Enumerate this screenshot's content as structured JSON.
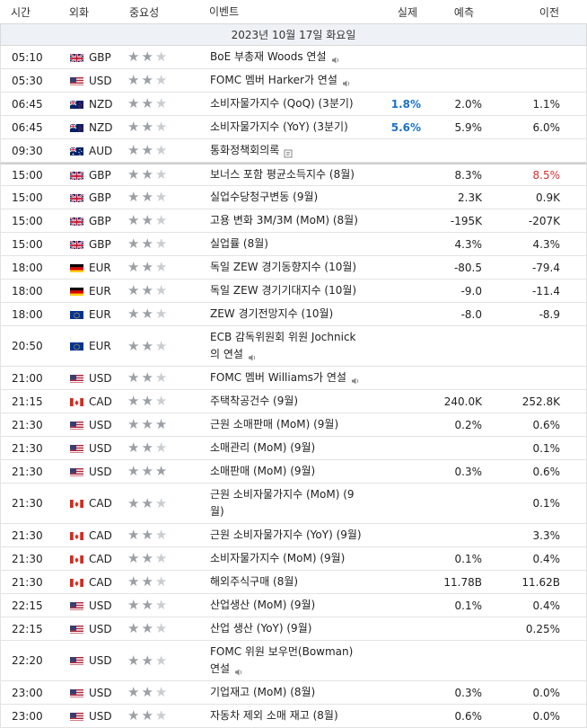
{
  "headers": {
    "time": "시간",
    "currency": "외화",
    "importance": "중요성",
    "event": "이벤트",
    "actual": "실제",
    "forecast": "예측",
    "previous": "이전"
  },
  "date_label": "2023년 10월 17일 화요일",
  "colors": {
    "actual_positive": "#1a73c9",
    "previous_revised": "#d62e2e",
    "star": "#9aa0a6"
  },
  "rows": [
    {
      "time": "05:10",
      "flag": "gb-flag-icon",
      "currency": "GBP",
      "stars": 2,
      "event": "BoE 부총재 Woods 연설",
      "icon": "sound",
      "actual": "",
      "forecast": "",
      "previous": "",
      "prevRed": false
    },
    {
      "time": "05:30",
      "flag": "us-flag-icon",
      "currency": "USD",
      "stars": 2,
      "event": "FOMC 멤버 Harker가 연설",
      "icon": "sound",
      "actual": "",
      "forecast": "",
      "previous": "",
      "prevRed": false
    },
    {
      "time": "06:45",
      "flag": "nz-flag-icon",
      "currency": "NZD",
      "stars": 2,
      "event": "소비자물가지수 (QoQ) (3분기)",
      "icon": "",
      "actual": "1.8%",
      "forecast": "2.0%",
      "previous": "1.1%",
      "prevRed": false
    },
    {
      "time": "06:45",
      "flag": "nz-flag-icon",
      "currency": "NZD",
      "stars": 2,
      "event": "소비자물가지수 (YoY) (3분기)",
      "icon": "",
      "actual": "5.6%",
      "forecast": "5.9%",
      "previous": "6.0%",
      "prevRed": false
    },
    {
      "time": "09:30",
      "flag": "au-flag-icon",
      "currency": "AUD",
      "stars": 2,
      "event": "통화정책회의록",
      "icon": "doc",
      "actual": "",
      "forecast": "",
      "previous": "",
      "prevRed": false
    },
    {
      "time": "15:00",
      "flag": "gb-flag-icon",
      "currency": "GBP",
      "stars": 2,
      "event": "보너스 포함 평균소득지수 (8월)",
      "icon": "",
      "actual": "",
      "forecast": "8.3%",
      "previous": "8.5%",
      "prevRed": true,
      "sep": true
    },
    {
      "time": "15:00",
      "flag": "gb-flag-icon",
      "currency": "GBP",
      "stars": 2,
      "event": "실업수당청구변동 (9월)",
      "icon": "",
      "actual": "",
      "forecast": "2.3K",
      "previous": "0.9K",
      "prevRed": false
    },
    {
      "time": "15:00",
      "flag": "gb-flag-icon",
      "currency": "GBP",
      "stars": 2,
      "event": "고용 변화 3M/3M (MoM) (8월)",
      "icon": "",
      "actual": "",
      "forecast": "-195K",
      "previous": "-207K",
      "prevRed": false
    },
    {
      "time": "15:00",
      "flag": "gb-flag-icon",
      "currency": "GBP",
      "stars": 2,
      "event": "실업률 (8월)",
      "icon": "",
      "actual": "",
      "forecast": "4.3%",
      "previous": "4.3%",
      "prevRed": false
    },
    {
      "time": "18:00",
      "flag": "de-flag-icon",
      "currency": "EUR",
      "stars": 2,
      "event": "독일 ZEW 경기동향지수 (10월)",
      "icon": "",
      "actual": "",
      "forecast": "-80.5",
      "previous": "-79.4",
      "prevRed": false
    },
    {
      "time": "18:00",
      "flag": "de-flag-icon",
      "currency": "EUR",
      "stars": 2,
      "event": "독일 ZEW 경기기대지수 (10월)",
      "icon": "",
      "actual": "",
      "forecast": "-9.0",
      "previous": "-11.4",
      "prevRed": false
    },
    {
      "time": "18:00",
      "flag": "eu-flag-icon",
      "currency": "EUR",
      "stars": 2,
      "event": "ZEW 경기전망지수 (10월)",
      "icon": "",
      "actual": "",
      "forecast": "-8.0",
      "previous": "-8.9",
      "prevRed": false
    },
    {
      "time": "20:50",
      "flag": "eu-flag-icon",
      "currency": "EUR",
      "stars": 2,
      "event": "ECB 감독위원회 위원 Jochnick 의 연설",
      "icon": "sound",
      "actual": "",
      "forecast": "",
      "previous": "",
      "prevRed": false,
      "tall": true
    },
    {
      "time": "21:00",
      "flag": "us-flag-icon",
      "currency": "USD",
      "stars": 2,
      "event": "FOMC 멤버 Williams가 연설",
      "icon": "sound",
      "actual": "",
      "forecast": "",
      "previous": "",
      "prevRed": false
    },
    {
      "time": "21:15",
      "flag": "ca-flag-icon",
      "currency": "CAD",
      "stars": 2,
      "event": "주택착공건수 (9월)",
      "icon": "",
      "actual": "",
      "forecast": "240.0K",
      "previous": "252.8K",
      "prevRed": false
    },
    {
      "time": "21:30",
      "flag": "us-flag-icon",
      "currency": "USD",
      "stars": 3,
      "event": "근원 소매판매 (MoM) (9월)",
      "icon": "",
      "actual": "",
      "forecast": "0.2%",
      "previous": "0.6%",
      "prevRed": false
    },
    {
      "time": "21:30",
      "flag": "us-flag-icon",
      "currency": "USD",
      "stars": 2,
      "event": "소매관리 (MoM) (9월)",
      "icon": "",
      "actual": "",
      "forecast": "",
      "previous": "0.1%",
      "prevRed": false
    },
    {
      "time": "21:30",
      "flag": "us-flag-icon",
      "currency": "USD",
      "stars": 3,
      "event": "소매판매 (MoM) (9월)",
      "icon": "",
      "actual": "",
      "forecast": "0.3%",
      "previous": "0.6%",
      "prevRed": false
    },
    {
      "time": "21:30",
      "flag": "ca-flag-icon",
      "currency": "CAD",
      "stars": 2,
      "event": "근원 소비자물가지수 (MoM) (9월)",
      "icon": "",
      "actual": "",
      "forecast": "",
      "previous": "0.1%",
      "prevRed": false,
      "tall": true
    },
    {
      "time": "21:30",
      "flag": "ca-flag-icon",
      "currency": "CAD",
      "stars": 2,
      "event": "근원 소비자물가지수 (YoY) (9월)",
      "icon": "",
      "actual": "",
      "forecast": "",
      "previous": "3.3%",
      "prevRed": false
    },
    {
      "time": "21:30",
      "flag": "ca-flag-icon",
      "currency": "CAD",
      "stars": 2,
      "event": "소비자물가지수 (MoM) (9월)",
      "icon": "",
      "actual": "",
      "forecast": "0.1%",
      "previous": "0.4%",
      "prevRed": false
    },
    {
      "time": "21:30",
      "flag": "ca-flag-icon",
      "currency": "CAD",
      "stars": 2,
      "event": "해외주식구매 (8월)",
      "icon": "",
      "actual": "",
      "forecast": "11.78B",
      "previous": "11.62B",
      "prevRed": false
    },
    {
      "time": "22:15",
      "flag": "us-flag-icon",
      "currency": "USD",
      "stars": 2,
      "event": "산업생산 (MoM) (9월)",
      "icon": "",
      "actual": "",
      "forecast": "0.1%",
      "previous": "0.4%",
      "prevRed": false
    },
    {
      "time": "22:15",
      "flag": "us-flag-icon",
      "currency": "USD",
      "stars": 2,
      "event": "산업 생산 (YoY) (9월)",
      "icon": "",
      "actual": "",
      "forecast": "",
      "previous": "0.25%",
      "prevRed": false
    },
    {
      "time": "22:20",
      "flag": "us-flag-icon",
      "currency": "USD",
      "stars": 2,
      "event": "FOMC 위원 보우먼(Bowman) 연설",
      "icon": "sound",
      "actual": "",
      "forecast": "",
      "previous": "",
      "prevRed": false,
      "tall": true
    },
    {
      "time": "23:00",
      "flag": "us-flag-icon",
      "currency": "USD",
      "stars": 2,
      "event": "기업재고 (MoM) (8월)",
      "icon": "",
      "actual": "",
      "forecast": "0.3%",
      "previous": "0.0%",
      "prevRed": false
    },
    {
      "time": "23:00",
      "flag": "us-flag-icon",
      "currency": "USD",
      "stars": 2,
      "event": "자동차 제외 소매 재고 (8월)",
      "icon": "",
      "actual": "",
      "forecast": "0.6%",
      "previous": "0.0%",
      "prevRed": false
    }
  ]
}
